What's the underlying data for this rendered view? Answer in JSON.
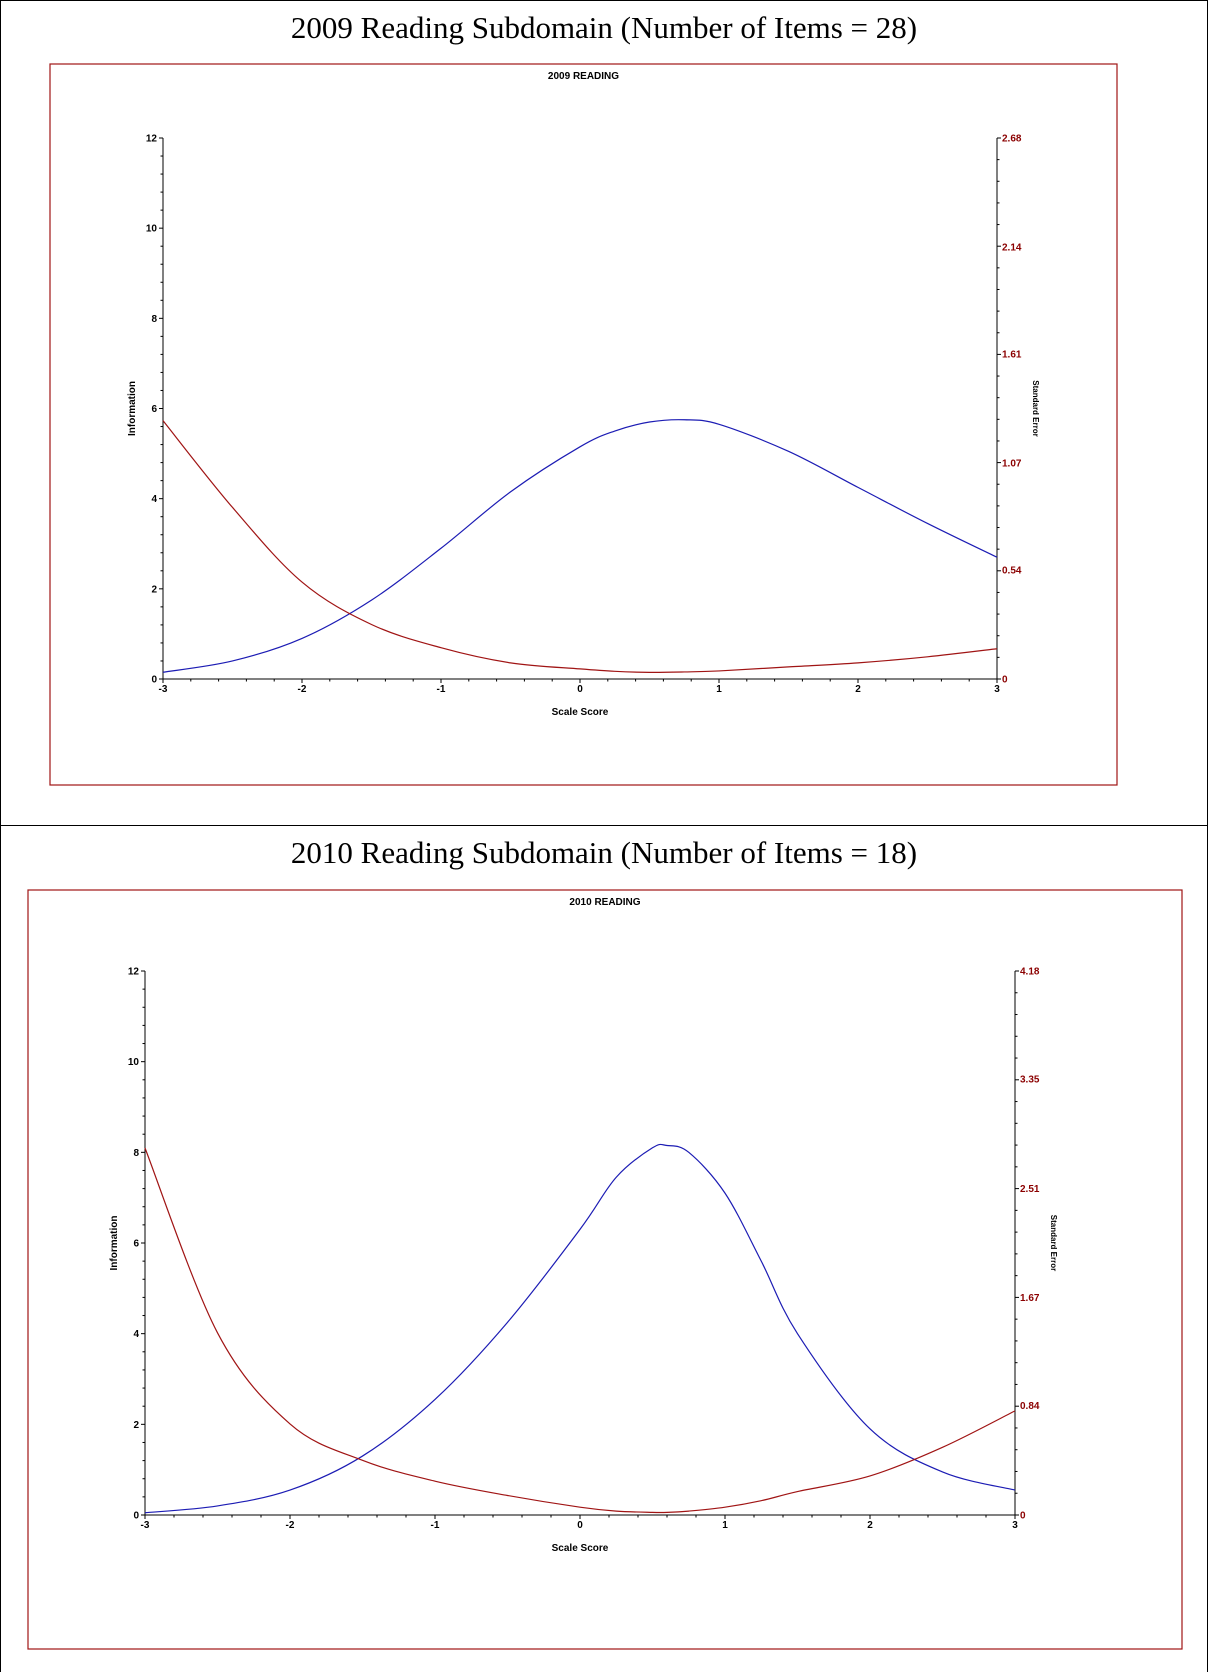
{
  "colors": {
    "information_curve": "#1c1cb4",
    "standard_error_curve": "#a01414",
    "frame": "#a01414",
    "right_axis_text": "#8b0000"
  },
  "panels": [
    {
      "caption": "2009 Reading Subdomain (Number of Items = 28)"
    },
    {
      "caption": "2010 Reading Subdomain (Number of Items = 18)"
    }
  ],
  "chart_data": [
    {
      "type": "line",
      "title": "2009 READING",
      "xlabel": "Scale Score",
      "ylabel": "Information",
      "y2label": "Standard Error",
      "xlim": [
        -3,
        3
      ],
      "ylim": [
        0,
        12
      ],
      "y2lim": [
        0,
        2.68
      ],
      "x_ticks": [
        "-3",
        "-2",
        "-1",
        "0",
        "1",
        "2",
        "3"
      ],
      "y_ticks": [
        "0",
        "2",
        "4",
        "6",
        "8",
        "10",
        "12"
      ],
      "y2_ticks": [
        "0",
        "0.54",
        "1.07",
        "1.61",
        "2.14",
        "2.68"
      ],
      "x": [
        -3,
        -2.5,
        -2,
        -1.5,
        -1,
        -0.5,
        0,
        0.25,
        0.5,
        0.75,
        1,
        1.5,
        2,
        2.5,
        3
      ],
      "series": [
        {
          "axis": "left",
          "values": [
            0.15,
            0.4,
            0.9,
            1.75,
            2.9,
            4.15,
            5.15,
            5.5,
            5.7,
            5.75,
            5.65,
            5.05,
            4.25,
            3.45,
            2.7
          ]
        },
        {
          "axis": "right",
          "values": [
            1.28,
            0.85,
            0.48,
            0.27,
            0.155,
            0.08,
            0.05,
            0.038,
            0.033,
            0.035,
            0.04,
            0.06,
            0.08,
            0.11,
            0.15
          ]
        }
      ]
    },
    {
      "type": "line",
      "title": "2010 READING",
      "xlabel": "Scale Score",
      "ylabel": "Information",
      "y2label": "Standard Error",
      "xlim": [
        -3,
        3
      ],
      "ylim": [
        0,
        12
      ],
      "y2lim": [
        0,
        4.18
      ],
      "x_ticks": [
        "-3",
        "-2",
        "-1",
        "0",
        "1",
        "2",
        "3"
      ],
      "y_ticks": [
        "0",
        "2",
        "4",
        "6",
        "8",
        "10",
        "12"
      ],
      "y2_ticks": [
        "0",
        "0.84",
        "1.67",
        "2.51",
        "3.35",
        "4.18"
      ],
      "x": [
        -3,
        -2.5,
        -2,
        -1.5,
        -1,
        -0.5,
        0,
        0.25,
        0.5,
        0.6,
        0.75,
        1,
        1.25,
        1.5,
        2,
        2.5,
        3
      ],
      "series": [
        {
          "axis": "left",
          "values": [
            0.05,
            0.2,
            0.55,
            1.3,
            2.55,
            4.25,
            6.3,
            7.45,
            8.1,
            8.15,
            8.0,
            7.1,
            5.6,
            4.0,
            1.9,
            0.95,
            0.55
          ]
        },
        {
          "axis": "right",
          "values": [
            2.82,
            1.4,
            0.7,
            0.42,
            0.26,
            0.15,
            0.06,
            0.03,
            0.02,
            0.02,
            0.03,
            0.06,
            0.11,
            0.18,
            0.3,
            0.52,
            0.8
          ]
        }
      ]
    }
  ]
}
